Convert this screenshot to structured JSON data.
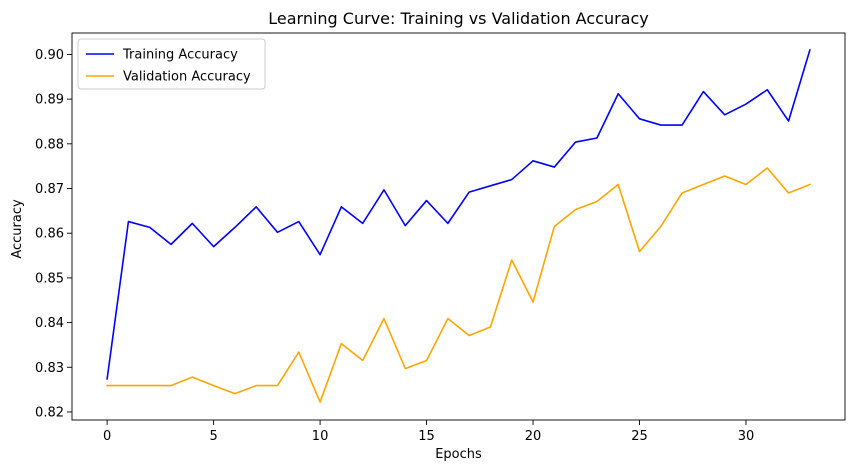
{
  "chart_data": {
    "type": "line",
    "title": "Learning Curve: Training vs Validation Accuracy",
    "xlabel": "Epochs",
    "ylabel": "Accuracy",
    "xlim": [
      -1.65,
      34.65
    ],
    "ylim": [
      0.8182,
      0.9048
    ],
    "xticks": [
      0,
      5,
      10,
      15,
      20,
      25,
      30
    ],
    "yticks": [
      0.82,
      0.83,
      0.84,
      0.85,
      0.86,
      0.87,
      0.88,
      0.89,
      0.9
    ],
    "ytick_labels": [
      "0.82",
      "0.83",
      "0.84",
      "0.85",
      "0.86",
      "0.87",
      "0.88",
      "0.89",
      "0.90"
    ],
    "grid": false,
    "legend_position": "top-left",
    "x": [
      0,
      1,
      2,
      3,
      4,
      5,
      6,
      7,
      8,
      9,
      10,
      11,
      12,
      13,
      14,
      15,
      16,
      17,
      18,
      19,
      20,
      21,
      22,
      23,
      24,
      25,
      26,
      27,
      28,
      29,
      30,
      31,
      32,
      33
    ],
    "series": [
      {
        "name": "Training Accuracy",
        "color": "#0000ff",
        "values": [
          0.8274,
          0.8626,
          0.8613,
          0.8575,
          0.8622,
          0.857,
          0.8613,
          0.8659,
          0.8602,
          0.8626,
          0.8552,
          0.8659,
          0.8622,
          0.8697,
          0.8617,
          0.8673,
          0.8622,
          0.8692,
          0.8706,
          0.872,
          0.8762,
          0.8748,
          0.8804,
          0.8813,
          0.8912,
          0.8856,
          0.8842,
          0.8842,
          0.8917,
          0.8865,
          0.8889,
          0.8921,
          0.8851,
          0.901
        ]
      },
      {
        "name": "Validation Accuracy",
        "color": "#ffa500",
        "values": [
          0.8259,
          0.8259,
          0.8259,
          0.8259,
          0.8278,
          0.8259,
          0.8241,
          0.8259,
          0.8259,
          0.8334,
          0.8222,
          0.8353,
          0.8315,
          0.8409,
          0.8297,
          0.8315,
          0.8409,
          0.8371,
          0.839,
          0.854,
          0.8446,
          0.8615,
          0.8653,
          0.8671,
          0.8709,
          0.8559,
          0.8615,
          0.869,
          0.8709,
          0.8728,
          0.8709,
          0.8746,
          0.869,
          0.8709
        ]
      }
    ]
  }
}
